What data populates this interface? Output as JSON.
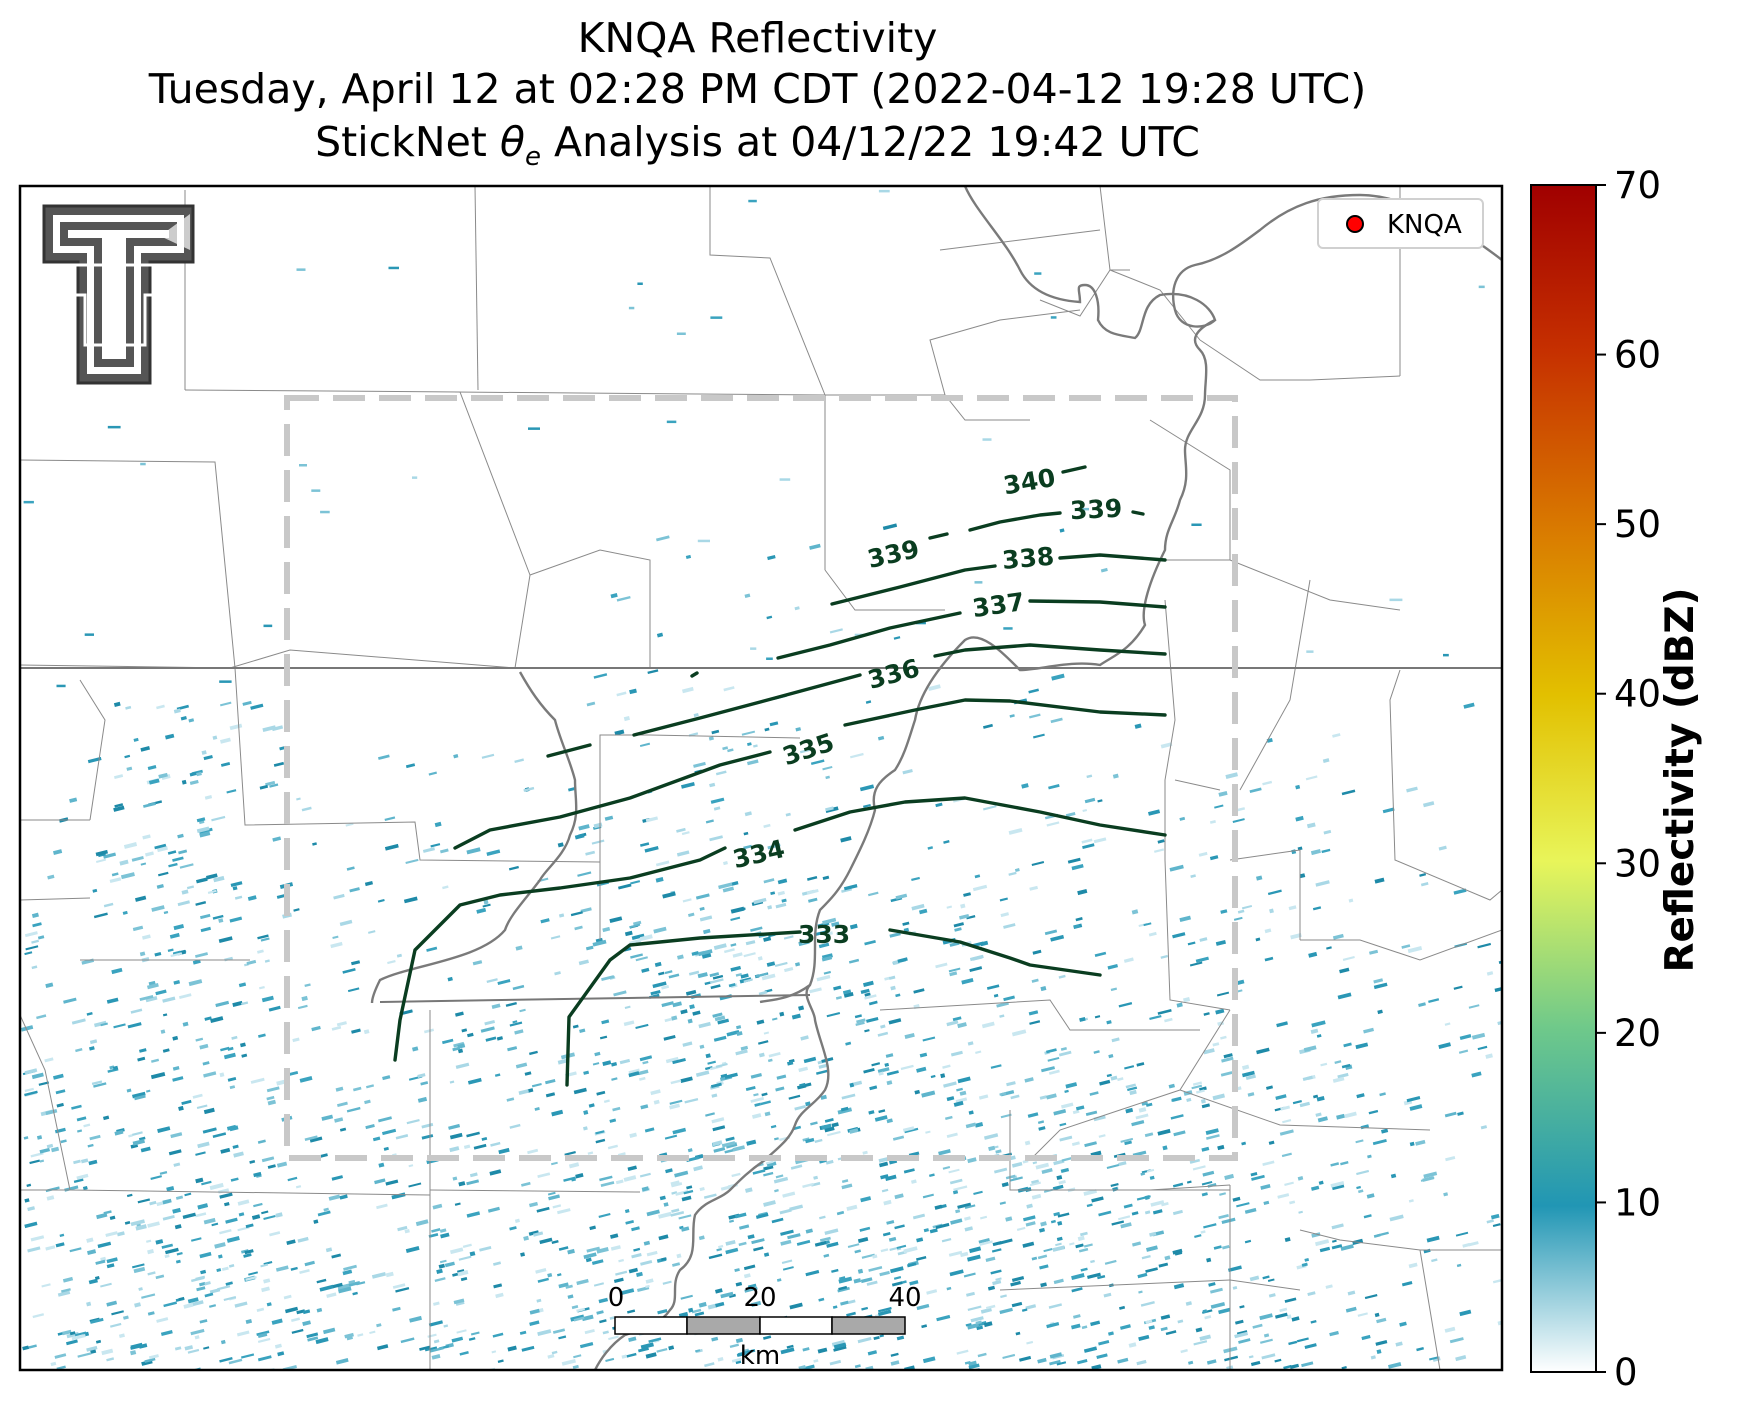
{
  "title": {
    "line1": "KNQA Reflectivity",
    "line2": "Tuesday, April 12 at 02:28 PM CDT (2022-04-12 19:28 UTC)",
    "line3_prefix": "StickNet ",
    "line3_theta": "θ",
    "line3_sub": "e",
    "line3_suffix": " Analysis at 04/12/22 19:42 UTC"
  },
  "legend": {
    "station": "KNQA",
    "marker_color": "#ff0000"
  },
  "colorbar": {
    "label": "Reflectivity (dBZ)",
    "ticks": [
      "0",
      "10",
      "20",
      "30",
      "40",
      "50",
      "60",
      "70"
    ],
    "min": 0,
    "max": 70,
    "colors": [
      "#ffffff",
      "#2196b4",
      "#6fc98a",
      "#e8f55a",
      "#e2c000",
      "#d97a00",
      "#c63000",
      "#a00000"
    ]
  },
  "scalebar": {
    "ticks": [
      "0",
      "20",
      "40"
    ],
    "unit": "km"
  },
  "contours": [
    {
      "value": "333"
    },
    {
      "value": "334"
    },
    {
      "value": "335"
    },
    {
      "value": "336"
    },
    {
      "value": "337"
    },
    {
      "value": "338"
    },
    {
      "value": "339"
    },
    {
      "value": "339"
    },
    {
      "value": "340"
    }
  ],
  "logo": {
    "name": "Texas Tech Double T"
  },
  "colors": {
    "contour": "#0a3d20",
    "analysis_box": "#c8c8c8",
    "borders": "#8a8a8a",
    "river": "#7a7a7a"
  }
}
